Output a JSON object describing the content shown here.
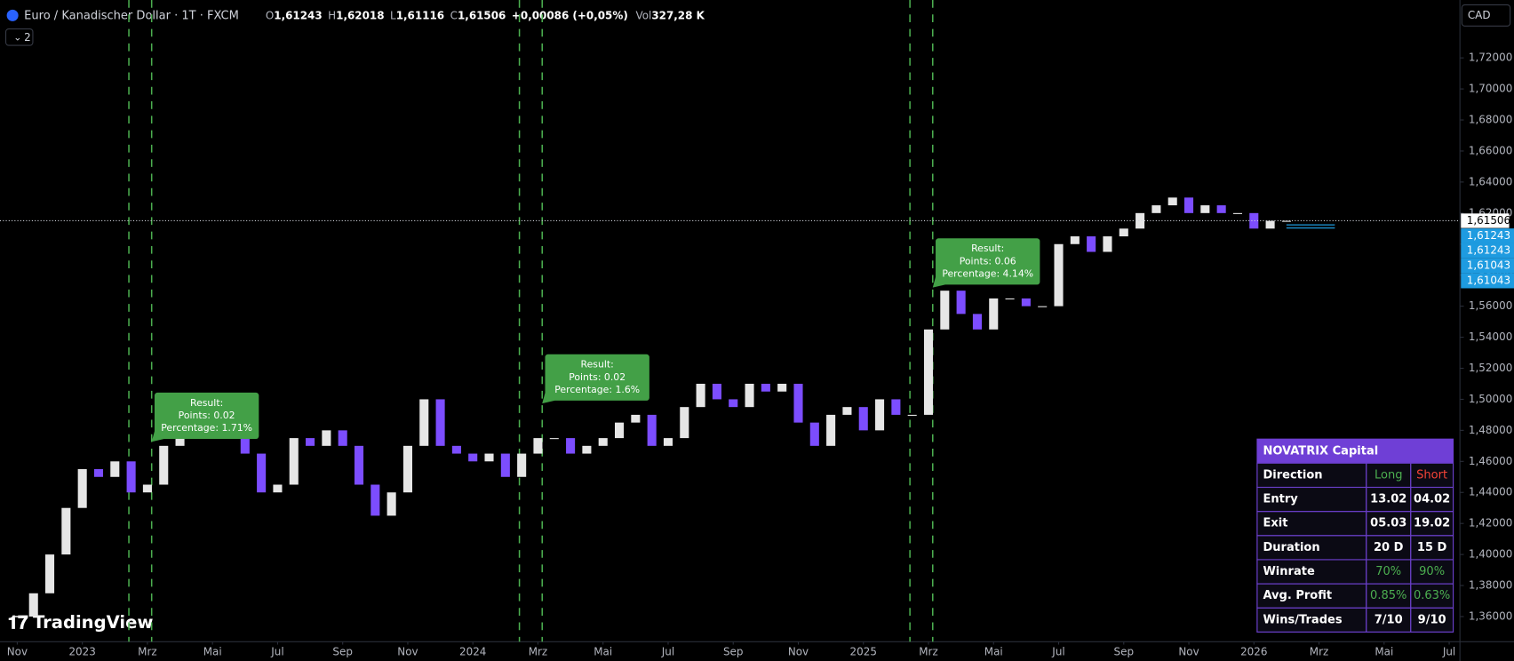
{
  "chart_data": {
    "type": "candlestick",
    "title": "Euro / Kanadischer Dollar · 1T · FXCM",
    "ohlc": [
      {
        "label": "O",
        "value": "1,61243"
      },
      {
        "label": "H",
        "value": "1,62018"
      },
      {
        "label": "L",
        "value": "1,61116"
      },
      {
        "label": "C",
        "value": "1,61506"
      }
    ],
    "change": "+0,00086 (+0,05%)",
    "volume": {
      "label": "Vol",
      "value": "327,28 K"
    },
    "x": [
      0,
      0.5,
      1,
      1.5,
      2,
      2.5,
      3,
      3.5,
      4,
      4.5,
      5,
      5.5,
      6,
      6.5,
      7,
      7.5,
      8,
      8.5,
      9,
      9.5,
      10,
      10.5,
      11,
      11.5,
      12,
      12.5,
      13,
      13.5,
      14,
      14.5,
      15,
      15.5,
      16,
      16.5,
      17,
      17.5,
      18,
      18.5,
      19,
      19.5,
      20,
      20.5,
      21,
      21.5,
      22,
      22.5,
      23,
      23.5,
      24,
      24.5,
      25,
      25.5,
      26,
      26.5,
      27,
      27.5,
      28,
      28.5,
      29,
      29.5,
      30,
      30.5,
      31,
      31.5,
      32,
      32.5,
      33,
      33.5,
      34,
      34.5,
      35,
      35.5,
      36,
      36.5,
      37,
      37.5,
      38,
      38.5,
      39
    ],
    "values": [
      1.36,
      1.375,
      1.4,
      1.43,
      1.455,
      1.45,
      1.46,
      1.44,
      1.445,
      1.47,
      1.48,
      1.49,
      1.485,
      1.48,
      1.465,
      1.44,
      1.445,
      1.475,
      1.47,
      1.48,
      1.47,
      1.445,
      1.425,
      1.44,
      1.47,
      1.5,
      1.47,
      1.465,
      1.46,
      1.465,
      1.45,
      1.465,
      1.475,
      1.475,
      1.465,
      1.47,
      1.475,
      1.485,
      1.49,
      1.47,
      1.475,
      1.495,
      1.51,
      1.5,
      1.495,
      1.51,
      1.505,
      1.51,
      1.485,
      1.47,
      1.49,
      1.495,
      1.48,
      1.5,
      1.49,
      1.49,
      1.545,
      1.57,
      1.555,
      1.545,
      1.565,
      1.565,
      1.56,
      1.56,
      1.6,
      1.605,
      1.595,
      1.605,
      1.61,
      1.62,
      1.625,
      1.63,
      1.62,
      1.625,
      1.62,
      1.62,
      1.61,
      1.615,
      1.615
    ],
    "up_color": "#e6e6e6",
    "down_color": "#7c4dff",
    "xlim": [
      -0.53,
      44.33
    ],
    "xticks": [
      {
        "value": 0,
        "label": "Nov"
      },
      {
        "value": 2,
        "label": "2023"
      },
      {
        "value": 4,
        "label": "Mrz"
      },
      {
        "value": 6,
        "label": "Mai"
      },
      {
        "value": 8,
        "label": "Jul"
      },
      {
        "value": 10,
        "label": "Sep"
      },
      {
        "value": 12,
        "label": "Nov"
      },
      {
        "value": 14,
        "label": "2024"
      },
      {
        "value": 16,
        "label": "Mrz"
      },
      {
        "value": 18,
        "label": "Mai"
      },
      {
        "value": 20,
        "label": "Jul"
      },
      {
        "value": 22,
        "label": "Sep"
      },
      {
        "value": 24,
        "label": "Nov"
      },
      {
        "value": 26,
        "label": "2025"
      },
      {
        "value": 28,
        "label": "Mrz"
      },
      {
        "value": 30,
        "label": "Mai"
      },
      {
        "value": 32,
        "label": "Jul"
      },
      {
        "value": 34,
        "label": "Sep"
      },
      {
        "value": 36,
        "label": "Nov"
      },
      {
        "value": 38,
        "label": "2026"
      },
      {
        "value": 40,
        "label": "Mrz"
      },
      {
        "value": 42,
        "label": "Mai"
      },
      {
        "value": 44,
        "label": "Jul"
      }
    ],
    "ylim": [
      1.3438,
      1.7573
    ],
    "yticks": [
      {
        "value": 1.36,
        "label": "1,36000"
      },
      {
        "value": 1.38,
        "label": "1,38000"
      },
      {
        "value": 1.4,
        "label": "1,40000"
      },
      {
        "value": 1.42,
        "label": "1,42000"
      },
      {
        "value": 1.44,
        "label": "1,44000"
      },
      {
        "value": 1.46,
        "label": "1,46000"
      },
      {
        "value": 1.48,
        "label": "1,48000"
      },
      {
        "value": 1.5,
        "label": "1,50000"
      },
      {
        "value": 1.52,
        "label": "1,52000"
      },
      {
        "value": 1.54,
        "label": "1,54000"
      },
      {
        "value": 1.56,
        "label": "1,56000"
      },
      {
        "value": 1.58,
        "label": "1,58000"
      },
      {
        "value": 1.6,
        "label": "1,60000"
      },
      {
        "value": 1.62,
        "label": "1,62000"
      },
      {
        "value": 1.64,
        "label": "1,64000"
      },
      {
        "value": 1.66,
        "label": "1,66000"
      },
      {
        "value": 1.68,
        "label": "1,68000"
      },
      {
        "value": 1.7,
        "label": "1,70000"
      },
      {
        "value": 1.72,
        "label": "1,72000"
      }
    ],
    "grid": false,
    "signal_lines": [
      3.43,
      4.13,
      15.43,
      16.13,
      27.43,
      28.13
    ],
    "signal_color": "#4caf50",
    "annotations": [
      {
        "x": 4.13,
        "y": 1.4726,
        "lines": [
          "Result:",
          "Points: 0.02",
          "Percentage: 1.71%"
        ]
      },
      {
        "x": 16.13,
        "y": 1.4973,
        "lines": [
          "Result:",
          "Points: 0.02",
          "Percentage: 1.6%"
        ]
      },
      {
        "x": 28.13,
        "y": 1.572,
        "lines": [
          "Result:",
          "Points: 0.06",
          "Percentage: 4.14%"
        ]
      }
    ],
    "annotation_color": "#43a047",
    "last_price": {
      "value": 1.61506,
      "label": "1,61506"
    },
    "price_levels": [
      {
        "value": 1.61243,
        "label": "1,61243"
      },
      {
        "value": 1.61243,
        "label": "1,61243"
      },
      {
        "value": 1.61043,
        "label": "1,61043"
      },
      {
        "value": 1.61043,
        "label": "1,61043"
      }
    ],
    "price_level_color": "#1e9be0"
  },
  "table": {
    "title": "NOVATRIX Capital",
    "rows": [
      [
        "Direction",
        "Long",
        "Short"
      ],
      [
        "Entry",
        "13.02",
        "04.02"
      ],
      [
        "Exit",
        "05.03",
        "19.02"
      ],
      [
        "Duration",
        "20 D",
        "15 D"
      ],
      [
        "Winrate",
        "70%",
        "90%"
      ],
      [
        "Avg. Profit",
        "0.85%",
        "0.63%"
      ],
      [
        "Wins/Trades",
        "7/10",
        "9/10"
      ]
    ]
  },
  "ui": {
    "currency": "CAD",
    "indicator_count": 2,
    "logo": "TradingView"
  }
}
